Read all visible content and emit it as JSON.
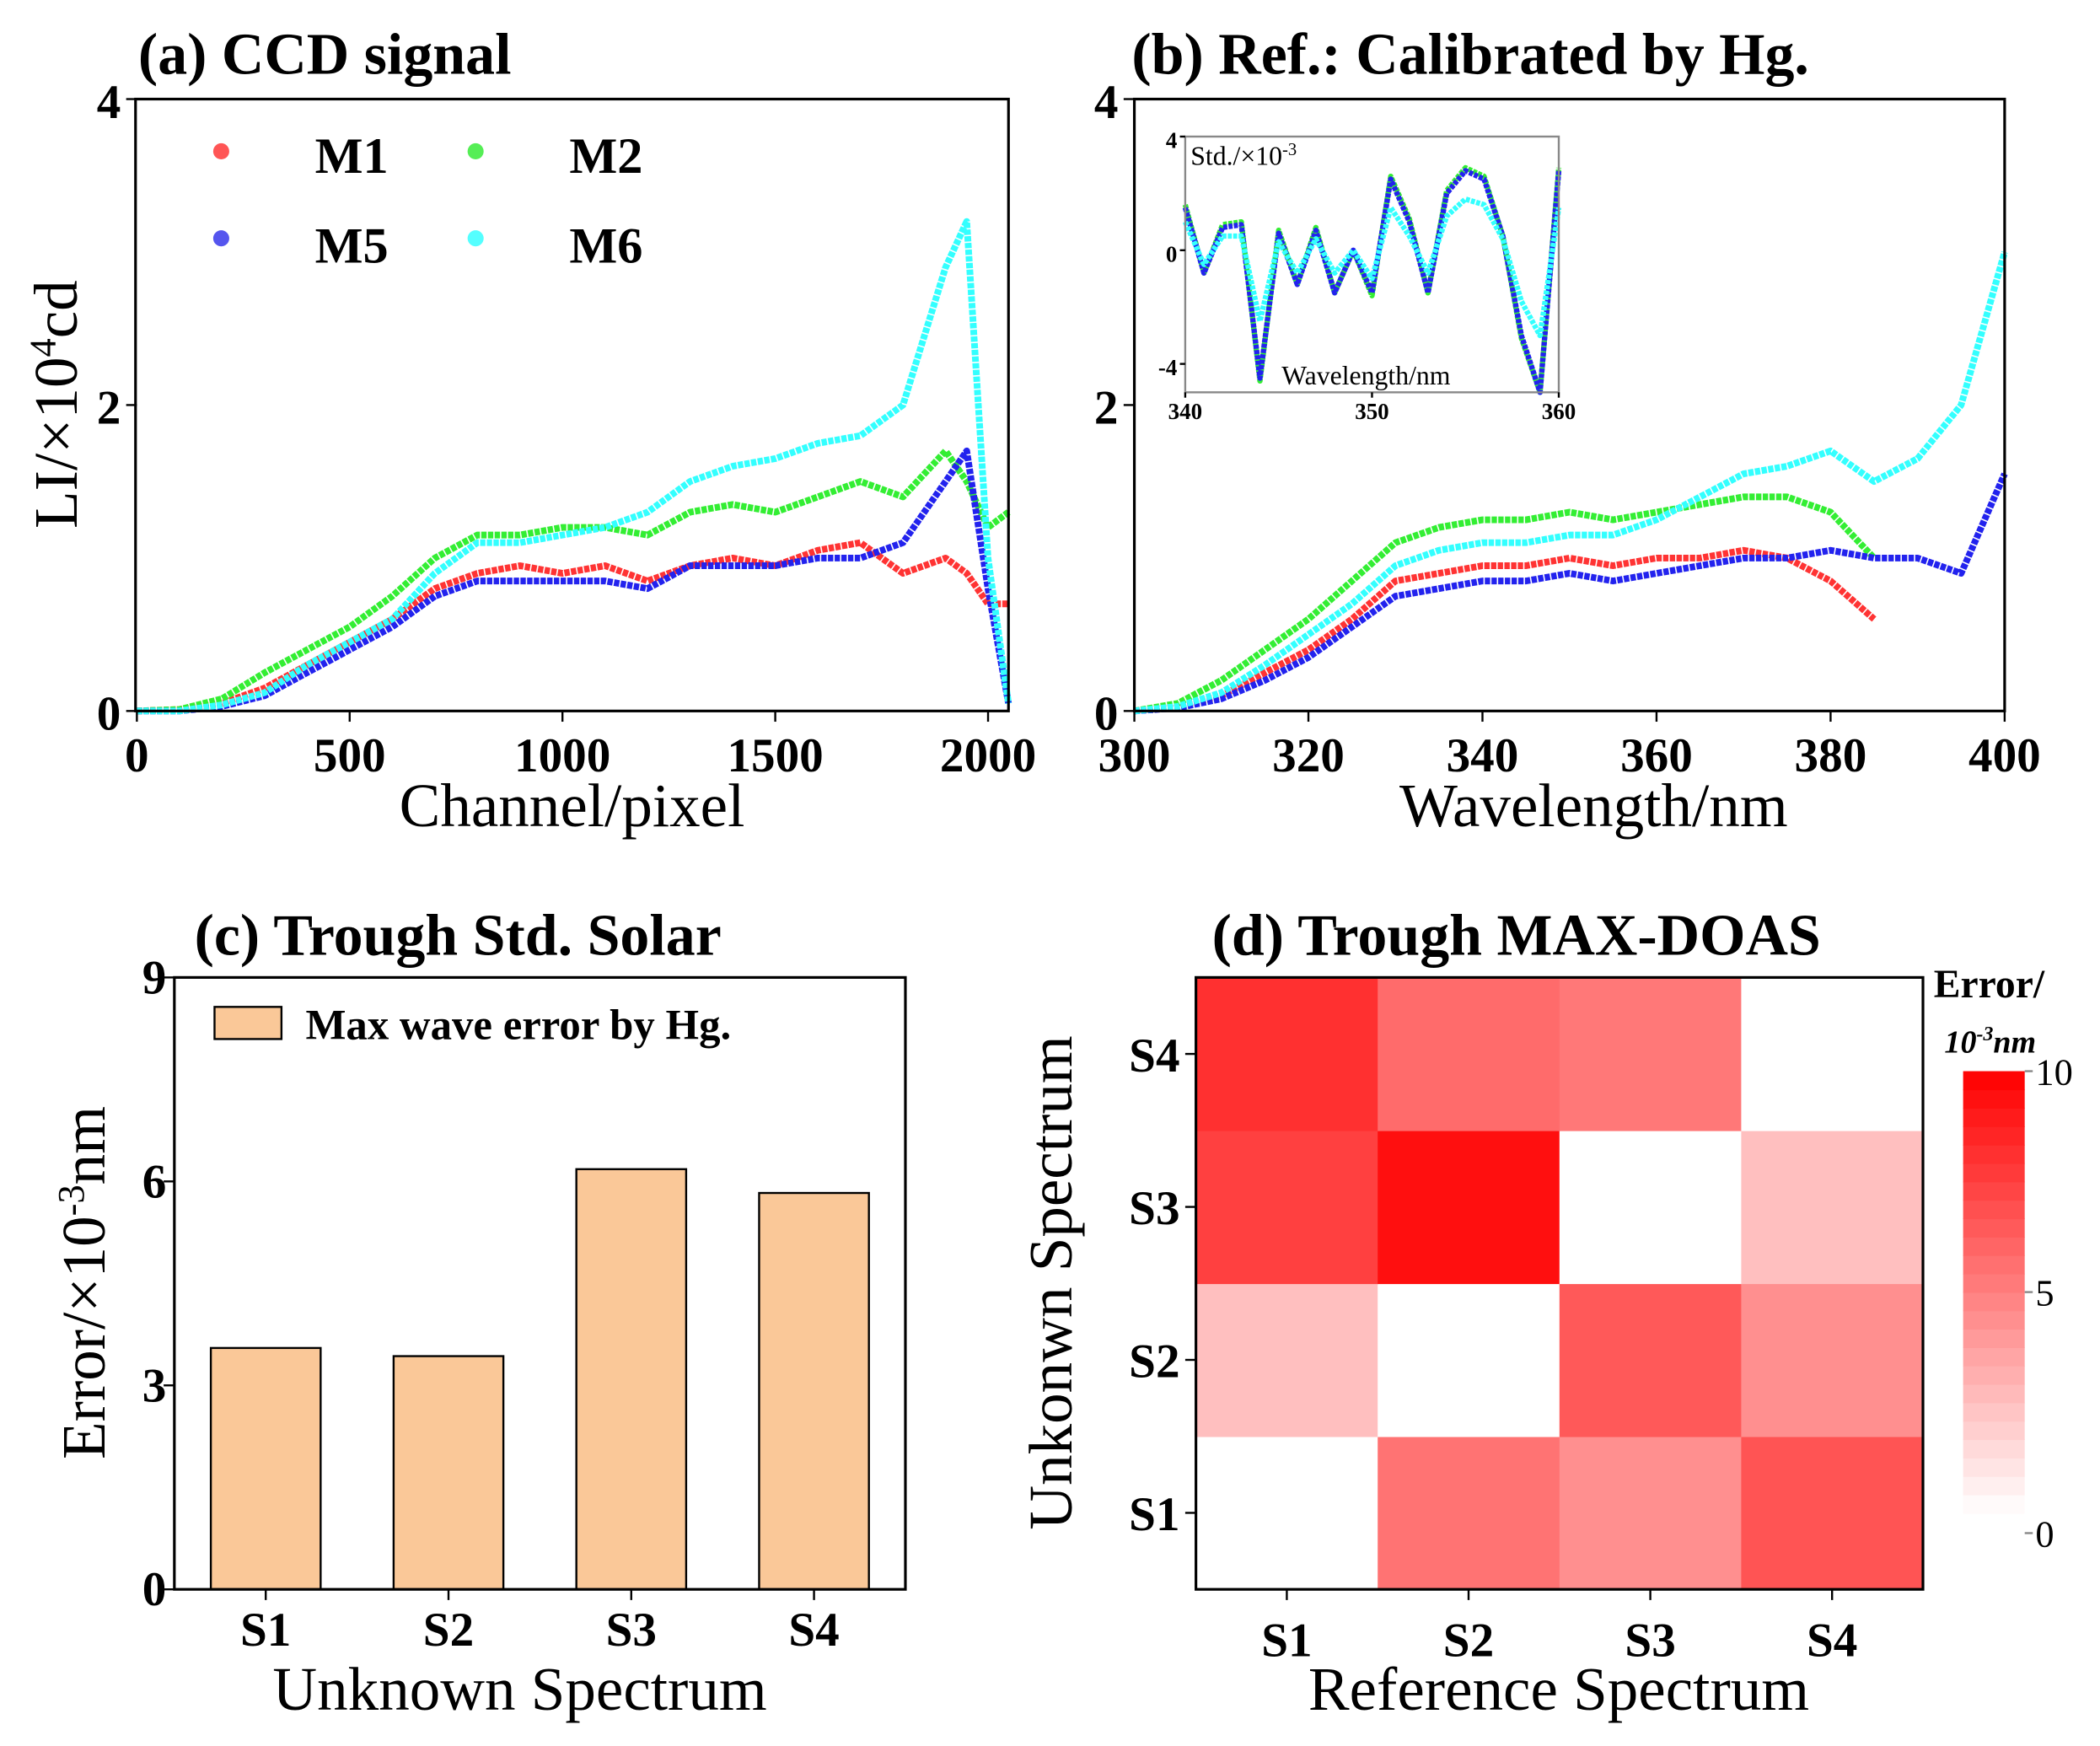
{
  "chart_data": [
    {
      "id": "a",
      "type": "line",
      "title": "(a) CCD signal",
      "xlabel": "Channel/pixel",
      "ylabel": {
        "main": "LI/×10",
        "sup": "4",
        "unit": "cd"
      },
      "xlim": [
        0,
        2048
      ],
      "ylim": [
        0,
        4
      ],
      "xticks": [
        "0",
        "500",
        "1000",
        "1500",
        "2000"
      ],
      "xtick_values": [
        0,
        500,
        1000,
        1500,
        2000
      ],
      "yticks": [
        "0",
        "2",
        "4"
      ],
      "ytick_values": [
        0,
        2,
        4
      ],
      "legend_placement": "top-left",
      "x": [
        0,
        100,
        200,
        300,
        400,
        500,
        600,
        700,
        800,
        900,
        1000,
        1100,
        1200,
        1300,
        1400,
        1500,
        1600,
        1700,
        1800,
        1900,
        1950,
        2000,
        2048
      ],
      "series": [
        {
          "name": "M1",
          "color": "#ff3333",
          "values": [
            0,
            0.01,
            0.05,
            0.15,
            0.3,
            0.45,
            0.6,
            0.8,
            0.9,
            0.95,
            0.9,
            0.95,
            0.85,
            0.95,
            1.0,
            0.95,
            1.05,
            1.1,
            0.9,
            1.0,
            0.9,
            0.7,
            0.7
          ]
        },
        {
          "name": "M2",
          "color": "#33ee33",
          "values": [
            0,
            0.01,
            0.08,
            0.25,
            0.4,
            0.55,
            0.75,
            1.0,
            1.15,
            1.15,
            1.2,
            1.2,
            1.15,
            1.3,
            1.35,
            1.3,
            1.4,
            1.5,
            1.4,
            1.7,
            1.5,
            1.2,
            1.3
          ]
        },
        {
          "name": "M5",
          "color": "#2222ee",
          "values": [
            0,
            0,
            0.03,
            0.1,
            0.25,
            0.4,
            0.55,
            0.75,
            0.85,
            0.85,
            0.85,
            0.85,
            0.8,
            0.95,
            0.95,
            0.95,
            1.0,
            1.0,
            1.1,
            1.5,
            1.7,
            0.8,
            0.05
          ]
        },
        {
          "name": "M6",
          "color": "#33ffff",
          "values": [
            0,
            0,
            0.04,
            0.12,
            0.3,
            0.45,
            0.6,
            0.9,
            1.1,
            1.1,
            1.15,
            1.2,
            1.3,
            1.5,
            1.6,
            1.65,
            1.75,
            1.8,
            2.0,
            2.9,
            3.2,
            1.0,
            0.05
          ]
        }
      ]
    },
    {
      "id": "b",
      "type": "line",
      "title": "(b) Ref.: Calibrated by Hg.",
      "xlabel": "Wavelength/nm",
      "ylabel": "",
      "xlim": [
        300,
        400
      ],
      "ylim": [
        0,
        4
      ],
      "xticks": [
        "300",
        "320",
        "340",
        "360",
        "380",
        "400"
      ],
      "xtick_values": [
        300,
        320,
        340,
        360,
        380,
        400
      ],
      "yticks": [
        "0",
        "2",
        "4"
      ],
      "ytick_values": [
        0,
        2,
        4
      ],
      "x": [
        300,
        305,
        310,
        315,
        320,
        325,
        330,
        335,
        340,
        345,
        350,
        355,
        360,
        365,
        370,
        375,
        380,
        385,
        390,
        395,
        400
      ],
      "series": [
        {
          "name": "M1",
          "color": "#ff3333",
          "values": [
            0,
            0.03,
            0.1,
            0.25,
            0.4,
            0.6,
            0.85,
            0.9,
            0.95,
            0.95,
            1.0,
            0.95,
            1.0,
            1.0,
            1.05,
            1.0,
            0.85,
            0.6,
            null,
            null,
            null
          ]
        },
        {
          "name": "M2",
          "color": "#33ee33",
          "values": [
            0,
            0.05,
            0.2,
            0.4,
            0.6,
            0.85,
            1.1,
            1.2,
            1.25,
            1.25,
            1.3,
            1.25,
            1.3,
            1.35,
            1.4,
            1.4,
            1.3,
            1.0,
            null,
            null,
            null
          ]
        },
        {
          "name": "M5",
          "color": "#2222ee",
          "values": [
            0,
            0.02,
            0.08,
            0.2,
            0.35,
            0.55,
            0.75,
            0.8,
            0.85,
            0.85,
            0.9,
            0.85,
            0.9,
            0.95,
            1.0,
            1.0,
            1.05,
            1.0,
            1.0,
            0.9,
            1.55
          ]
        },
        {
          "name": "M6",
          "color": "#33ffff",
          "values": [
            0,
            0.03,
            0.12,
            0.3,
            0.5,
            0.7,
            0.95,
            1.05,
            1.1,
            1.1,
            1.15,
            1.15,
            1.25,
            1.4,
            1.55,
            1.6,
            1.7,
            1.5,
            1.65,
            2.0,
            3.0
          ]
        }
      ],
      "inset": {
        "ylabel": {
          "main": "Std./×10",
          "sup": "-3"
        },
        "xlabel": "Wavelength/nm",
        "xlim": [
          340,
          360
        ],
        "ylim": [
          -5,
          4
        ],
        "xticks": [
          "340",
          "350",
          "360"
        ],
        "xtick_values": [
          340,
          350,
          360
        ],
        "yticks": [
          "-4",
          "0",
          "4"
        ],
        "ytick_values": [
          -4,
          0,
          4
        ],
        "x": [
          340,
          341,
          342,
          343,
          344,
          345,
          346,
          347,
          348,
          349,
          350,
          351,
          352,
          353,
          354,
          355,
          356,
          357,
          358,
          359,
          360
        ],
        "series": [
          {
            "name": "M2",
            "color": "#33ee33",
            "values": [
              1.6,
              -0.8,
              0.9,
              1.0,
              -4.6,
              0.7,
              -1.2,
              0.8,
              -1.5,
              0,
              -1.6,
              2.6,
              1.1,
              -1.5,
              2.1,
              2.9,
              2.6,
              0.5,
              -3.1,
              -5,
              2.9
            ]
          },
          {
            "name": "M5",
            "color": "#2222ee",
            "values": [
              1.5,
              -0.8,
              0.8,
              0.9,
              -4.5,
              0.6,
              -1.2,
              0.7,
              -1.5,
              0,
              -1.5,
              2.5,
              1.0,
              -1.5,
              2.0,
              2.8,
              2.5,
              0.5,
              -3.0,
              -5,
              2.8
            ]
          },
          {
            "name": "M6",
            "color": "#33ffff",
            "values": [
              1.0,
              -0.5,
              0.5,
              0.5,
              -2.5,
              0.3,
              -0.8,
              0.4,
              -0.8,
              0,
              -1.0,
              1.5,
              0.5,
              -0.8,
              1.2,
              1.8,
              1.6,
              0.4,
              -1.8,
              -3.0,
              1.5
            ]
          }
        ]
      }
    },
    {
      "id": "c",
      "type": "bar",
      "title": "(c) Trough Std. Solar",
      "xlabel": "Unknown Spectrum",
      "ylabel": {
        "main": "Error/×10",
        "sup": "-3",
        "unit": "nm"
      },
      "categories": [
        "S1",
        "S2",
        "S3",
        "S4"
      ],
      "values": [
        3.55,
        3.43,
        6.18,
        5.83
      ],
      "ylim": [
        0,
        9
      ],
      "yticks": [
        "0",
        "3",
        "6",
        "9"
      ],
      "ytick_values": [
        0,
        3,
        6,
        9
      ],
      "legend": "Max wave error by Hg.",
      "legend_placement": "top-left",
      "bar_color": "#fac898"
    },
    {
      "id": "d",
      "type": "heatmap",
      "title": "(d) Trough MAX-DOAS",
      "xlabel": "Reference Spectrum",
      "ylabel": "Unkonwn Spectrum",
      "x_categories": [
        "S1",
        "S2",
        "S3",
        "S4"
      ],
      "y_categories": [
        "S1",
        "S2",
        "S3",
        "S4"
      ],
      "values": [
        [
          0,
          5.5,
          4.4,
          6.7
        ],
        [
          2.5,
          0,
          6.5,
          4.4
        ],
        [
          7.5,
          9.4,
          0,
          2.5
        ],
        [
          8.1,
          5.8,
          5.3,
          0
        ]
      ],
      "colorbar": {
        "title": "Error/",
        "unit": {
          "main": "10",
          "sup": "-3",
          "unit": "nm"
        },
        "range": [
          0,
          10
        ],
        "ticks": [
          "0",
          "5",
          "10"
        ],
        "tick_values": [
          0,
          5,
          10
        ],
        "colors": [
          "#ffffff",
          "#ff0000"
        ]
      }
    }
  ]
}
